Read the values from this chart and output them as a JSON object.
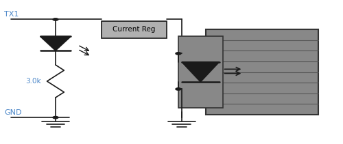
{
  "bg_color": "#ffffff",
  "line_color": "#1a1a1a",
  "gray_box_color": "#888888",
  "label_tx1_color": "#4a86c8",
  "label_gnd_color": "#4a86c8",
  "label_3k_color": "#4a86c8",
  "current_reg_label": "Current Reg",
  "tx1_label": "TX1",
  "gnd_label": "GND",
  "resistor_label": "3.0k"
}
